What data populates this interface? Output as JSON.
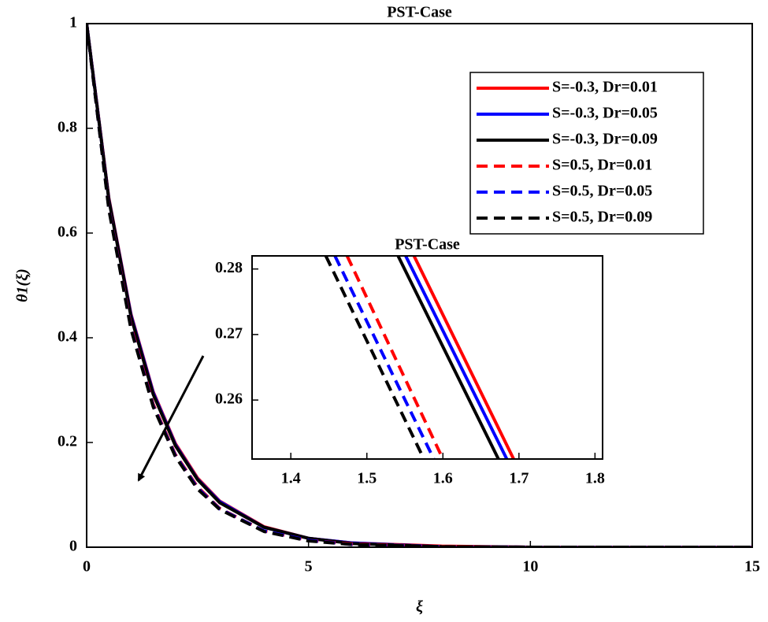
{
  "chart_data": [
    {
      "type": "line",
      "title": "PST-Case",
      "xlabel": "ξ",
      "ylabel": "θ1(ξ)",
      "x": [
        0,
        0.5,
        1,
        1.5,
        2,
        2.5,
        3,
        4,
        5,
        6,
        8,
        10,
        12,
        15
      ],
      "series": [
        {
          "name": "S=-0.3, Dr=0.01",
          "color": "#ff0000",
          "style": "solid",
          "values": [
            1,
            0.667,
            0.445,
            0.297,
            0.198,
            0.132,
            0.088,
            0.039,
            0.017,
            0.008,
            0.002,
            0,
            0,
            0
          ]
        },
        {
          "name": "S=-0.3, Dr=0.05",
          "color": "#0000ff",
          "style": "solid",
          "values": [
            1,
            0.665,
            0.443,
            0.295,
            0.196,
            0.13,
            0.087,
            0.038,
            0.017,
            0.008,
            0.001,
            0,
            0,
            0
          ]
        },
        {
          "name": "S=-0.3, Dr=0.09",
          "color": "#000000",
          "style": "solid",
          "values": [
            1,
            0.664,
            0.44,
            0.292,
            0.194,
            0.129,
            0.085,
            0.038,
            0.017,
            0.007,
            0.001,
            0,
            0,
            0
          ]
        },
        {
          "name": "S=0.5, Dr=0.01",
          "color": "#ff0000",
          "style": "dashed",
          "values": [
            1,
            0.649,
            0.421,
            0.273,
            0.177,
            0.115,
            0.074,
            0.031,
            0.013,
            0.006,
            0.001,
            0,
            0,
            0
          ]
        },
        {
          "name": "S=0.5, Dr=0.05",
          "color": "#0000ff",
          "style": "dashed",
          "values": [
            1,
            0.647,
            0.418,
            0.27,
            0.175,
            0.113,
            0.073,
            0.031,
            0.013,
            0.005,
            0.001,
            0,
            0,
            0
          ]
        },
        {
          "name": "S=0.5, Dr=0.09",
          "color": "#000000",
          "style": "dashed",
          "values": [
            1,
            0.645,
            0.416,
            0.268,
            0.173,
            0.111,
            0.072,
            0.03,
            0.012,
            0.005,
            0.001,
            0,
            0,
            0
          ]
        }
      ],
      "xlim": [
        0,
        15
      ],
      "xticks": [
        0,
        5,
        10,
        15
      ],
      "ylim": [
        0,
        1
      ],
      "yticks": [
        0,
        0.2,
        0.4,
        0.6,
        0.8,
        1
      ],
      "grid": false,
      "legend": "upper right"
    },
    {
      "type": "line",
      "title": "PST-Case",
      "series": [
        {
          "color": "#ff0000",
          "style": "solid",
          "x": [
            1.562,
            1.693
          ],
          "values": [
            0.282,
            0.251
          ]
        },
        {
          "color": "#0000ff",
          "style": "solid",
          "x": [
            1.551,
            1.684
          ],
          "values": [
            0.282,
            0.251
          ]
        },
        {
          "color": "#000000",
          "style": "solid",
          "x": [
            1.541,
            1.673
          ],
          "values": [
            0.282,
            0.251
          ]
        },
        {
          "color": "#ff0000",
          "style": "dashed",
          "x": [
            1.474,
            1.6
          ],
          "values": [
            0.282,
            0.251
          ]
        },
        {
          "color": "#0000ff",
          "style": "dashed",
          "x": [
            1.458,
            1.588
          ],
          "values": [
            0.282,
            0.251
          ]
        },
        {
          "color": "#000000",
          "style": "dashed",
          "x": [
            1.446,
            1.575
          ],
          "values": [
            0.282,
            0.251
          ]
        }
      ],
      "xlim": [
        1.349,
        1.81
      ],
      "xticks": [
        1.4,
        1.5,
        1.6,
        1.7,
        1.8
      ],
      "ylim": [
        0.251,
        0.282
      ],
      "yticks": [
        0.26,
        0.27,
        0.28
      ],
      "grid": false
    }
  ]
}
